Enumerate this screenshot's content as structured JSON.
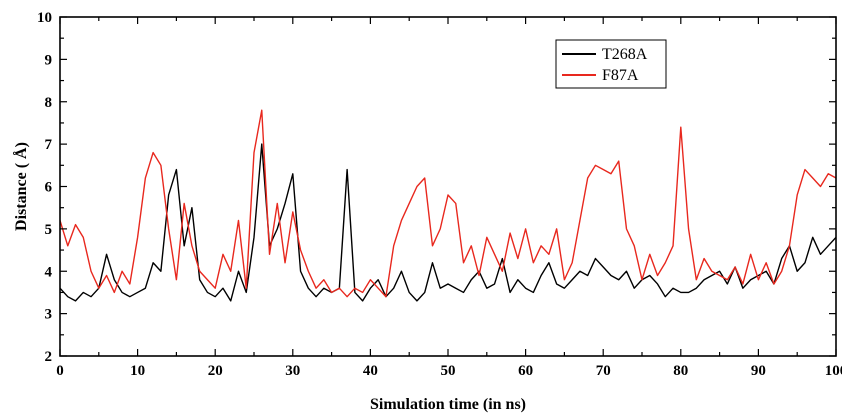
{
  "chart_data": {
    "type": "line",
    "title": "",
    "xlabel": "Simulation time (in ns)",
    "ylabel": "Distance ( Å)",
    "xlim": [
      0,
      100
    ],
    "ylim": [
      2,
      10
    ],
    "xticks": [
      0,
      10,
      20,
      30,
      40,
      50,
      60,
      70,
      80,
      90,
      100
    ],
    "yticks": [
      2,
      3,
      4,
      5,
      6,
      7,
      8,
      9,
      10
    ],
    "grid": false,
    "legend_position": "top-right",
    "series": [
      {
        "name": "T268A",
        "color": "#000000",
        "x": [
          0,
          1,
          2,
          3,
          4,
          5,
          6,
          7,
          8,
          9,
          10,
          11,
          12,
          13,
          14,
          15,
          16,
          17,
          18,
          19,
          20,
          21,
          22,
          23,
          24,
          25,
          26,
          27,
          28,
          29,
          30,
          31,
          32,
          33,
          34,
          35,
          36,
          37,
          38,
          39,
          40,
          41,
          42,
          43,
          44,
          45,
          46,
          47,
          48,
          49,
          50,
          51,
          52,
          53,
          54,
          55,
          56,
          57,
          58,
          59,
          60,
          61,
          62,
          63,
          64,
          65,
          66,
          67,
          68,
          69,
          70,
          71,
          72,
          73,
          74,
          75,
          76,
          77,
          78,
          79,
          80,
          81,
          82,
          83,
          84,
          85,
          86,
          87,
          88,
          89,
          90,
          91,
          92,
          93,
          94,
          95,
          96,
          97,
          98,
          99,
          100
        ],
        "y": [
          3.6,
          3.4,
          3.3,
          3.5,
          3.4,
          3.6,
          4.4,
          3.8,
          3.5,
          3.4,
          3.5,
          3.6,
          4.2,
          4.0,
          5.8,
          6.4,
          4.6,
          5.5,
          3.8,
          3.5,
          3.4,
          3.6,
          3.3,
          4.0,
          3.5,
          4.8,
          7.0,
          4.6,
          5.0,
          5.6,
          6.3,
          4.0,
          3.6,
          3.4,
          3.6,
          3.5,
          3.6,
          6.4,
          3.5,
          3.3,
          3.6,
          3.8,
          3.4,
          3.6,
          4.0,
          3.5,
          3.3,
          3.5,
          4.2,
          3.6,
          3.7,
          3.6,
          3.5,
          3.8,
          4.0,
          3.6,
          3.7,
          4.3,
          3.5,
          3.8,
          3.6,
          3.5,
          3.9,
          4.2,
          3.7,
          3.6,
          3.8,
          4.0,
          3.9,
          4.3,
          4.1,
          3.9,
          3.8,
          4.0,
          3.6,
          3.8,
          3.9,
          3.7,
          3.4,
          3.6,
          3.5,
          3.5,
          3.6,
          3.8,
          3.9,
          4.0,
          3.7,
          4.1,
          3.6,
          3.8,
          3.9,
          4.0,
          3.7,
          4.3,
          4.6,
          4.0,
          4.2,
          4.8,
          4.4,
          4.6,
          4.8
        ]
      },
      {
        "name": "F87A",
        "color": "#e8281e",
        "x": [
          0,
          1,
          2,
          3,
          4,
          5,
          6,
          7,
          8,
          9,
          10,
          11,
          12,
          13,
          14,
          15,
          16,
          17,
          18,
          19,
          20,
          21,
          22,
          23,
          24,
          25,
          26,
          27,
          28,
          29,
          30,
          31,
          32,
          33,
          34,
          35,
          36,
          37,
          38,
          39,
          40,
          41,
          42,
          43,
          44,
          45,
          46,
          47,
          48,
          49,
          50,
          51,
          52,
          53,
          54,
          55,
          56,
          57,
          58,
          59,
          60,
          61,
          62,
          63,
          64,
          65,
          66,
          67,
          68,
          69,
          70,
          71,
          72,
          73,
          74,
          75,
          76,
          77,
          78,
          79,
          80,
          81,
          82,
          83,
          84,
          85,
          86,
          87,
          88,
          89,
          90,
          91,
          92,
          93,
          94,
          95,
          96,
          97,
          98,
          99,
          100
        ],
        "y": [
          5.2,
          4.6,
          5.1,
          4.8,
          4.0,
          3.6,
          3.9,
          3.5,
          4.0,
          3.7,
          4.8,
          6.2,
          6.8,
          6.5,
          5.0,
          3.8,
          5.6,
          4.6,
          4.0,
          3.8,
          3.6,
          4.4,
          4.0,
          5.2,
          3.6,
          6.8,
          7.8,
          4.4,
          5.6,
          4.2,
          5.4,
          4.5,
          4.0,
          3.6,
          3.8,
          3.5,
          3.6,
          3.4,
          3.6,
          3.5,
          3.8,
          3.6,
          3.4,
          4.6,
          5.2,
          5.6,
          6.0,
          6.2,
          4.6,
          5.0,
          5.8,
          5.6,
          4.2,
          4.6,
          3.9,
          4.8,
          4.4,
          4.0,
          4.9,
          4.3,
          5.0,
          4.2,
          4.6,
          4.4,
          5.0,
          3.8,
          4.2,
          5.2,
          6.2,
          6.5,
          6.4,
          6.3,
          6.6,
          5.0,
          4.6,
          3.8,
          4.4,
          3.9,
          4.2,
          4.6,
          7.4,
          5.0,
          3.8,
          4.3,
          4.0,
          3.9,
          3.8,
          4.1,
          3.7,
          4.4,
          3.8,
          4.2,
          3.7,
          4.0,
          4.6,
          5.8,
          6.4,
          6.2,
          6.0,
          6.3,
          6.2
        ]
      }
    ]
  }
}
